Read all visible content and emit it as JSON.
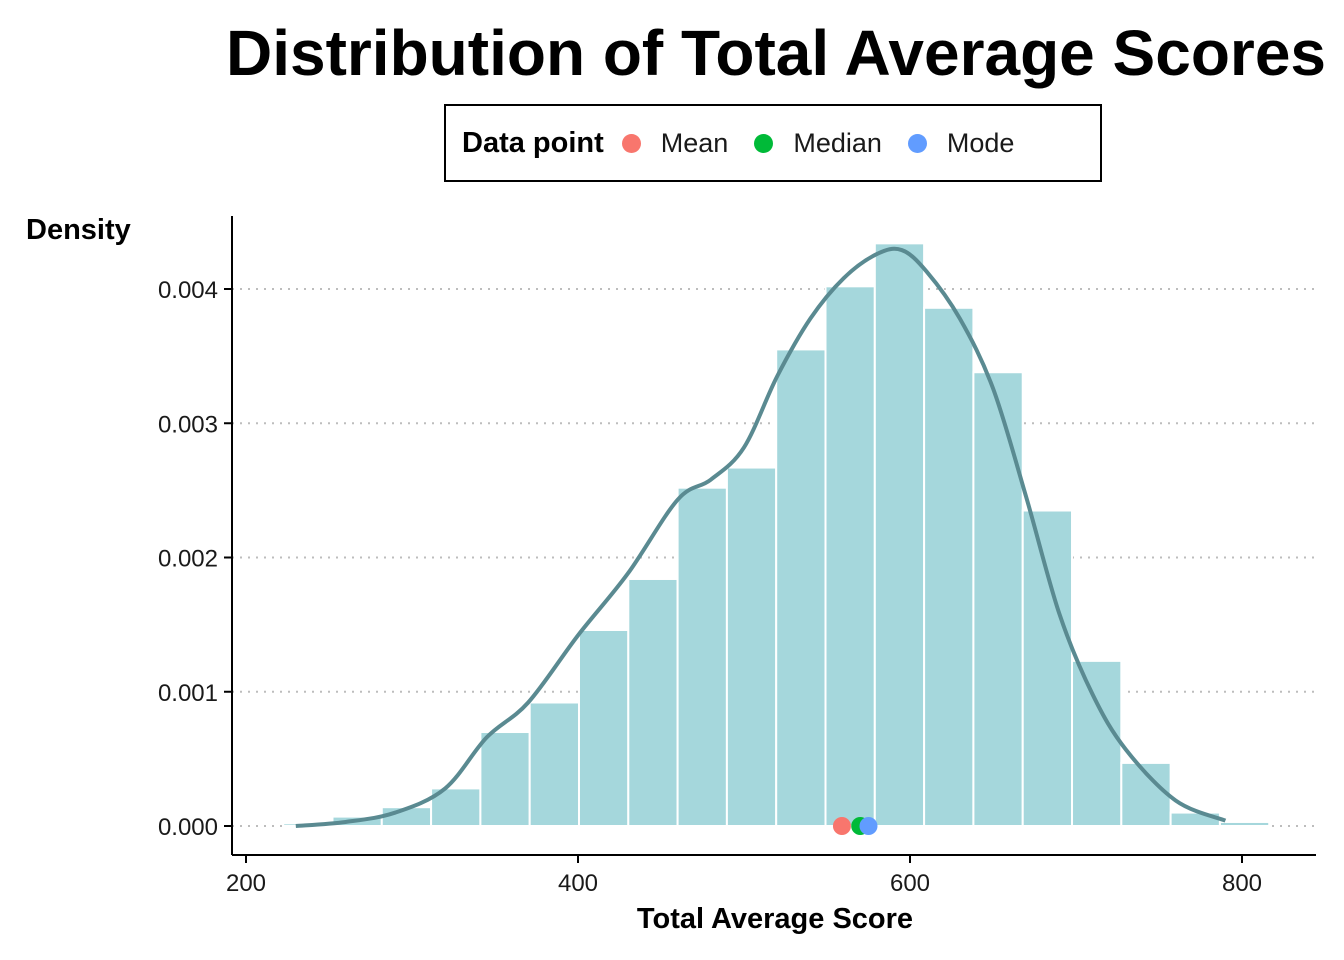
{
  "chart_data": {
    "type": "bar",
    "title": "Distribution of Total Average Scores",
    "xlabel": "Total Average Score",
    "ylabel": "Density",
    "xlim": [
      230,
      815
    ],
    "ylim": [
      -0.00022,
      0.0045
    ],
    "x_ticks": [
      200,
      400,
      600,
      800
    ],
    "x_tick_labels": [
      "200",
      "400",
      "600",
      "800"
    ],
    "y_ticks": [
      0,
      0.001,
      0.002,
      0.003,
      0.004
    ],
    "y_tick_labels": [
      "0.000",
      "0.001",
      "0.002",
      "0.003",
      "0.004"
    ],
    "grid": "horizontal dotted",
    "legend": {
      "title": "Data point",
      "placement": "top",
      "entries": [
        {
          "label": "Mean",
          "color": "#F8766D"
        },
        {
          "label": "Median",
          "color": "#00BA38"
        },
        {
          "label": "Mode",
          "color": "#619CFF"
        }
      ]
    },
    "histogram": {
      "bin_width": 29.7,
      "bin_starts": [
        222.4,
        252.1,
        281.8,
        311.5,
        341.2,
        370.9,
        400.6,
        430.3,
        460.0,
        489.7,
        519.4,
        549.1,
        578.8,
        608.5,
        638.2,
        667.9,
        697.6,
        727.3,
        757.0,
        786.7
      ],
      "densities": [
        2e-05,
        7e-05,
        0.00014,
        0.00028,
        0.0007,
        0.00092,
        0.00146,
        0.00184,
        0.00252,
        0.00267,
        0.00355,
        0.00402,
        0.00434,
        0.00386,
        0.00338,
        0.00235,
        0.00123,
        0.00047,
        0.0001,
        3e-05
      ],
      "fill": "#A5D7DC",
      "edge": "#ffffff"
    },
    "density_curve": {
      "color": "#5A8A91",
      "x": [
        230,
        260,
        290,
        320,
        345,
        370,
        400,
        430,
        460,
        480,
        500,
        520,
        540,
        560,
        580,
        595,
        610,
        630,
        650,
        670,
        690,
        710,
        730,
        760,
        790
      ],
      "y": [
        0.0,
        3e-05,
        0.0001,
        0.00028,
        0.00066,
        0.00092,
        0.00142,
        0.00188,
        0.00243,
        0.00258,
        0.00282,
        0.00335,
        0.00378,
        0.00408,
        0.00426,
        0.00429,
        0.00413,
        0.00378,
        0.00326,
        0.00245,
        0.00158,
        0.00098,
        0.00057,
        0.00019,
        4e-05
      ]
    },
    "points": [
      {
        "label": "Mean",
        "x": 559,
        "y": 0,
        "color": "#F8766D"
      },
      {
        "label": "Median",
        "x": 570,
        "y": 0,
        "color": "#00BA38"
      },
      {
        "label": "Mode",
        "x": 575,
        "y": 0,
        "color": "#619CFF"
      }
    ]
  }
}
